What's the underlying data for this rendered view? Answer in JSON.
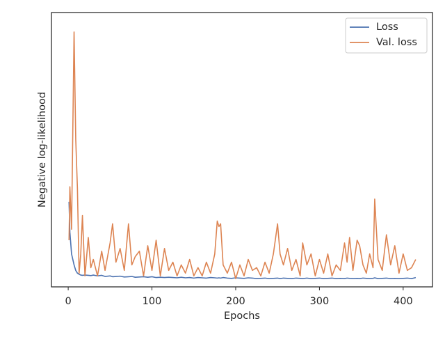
{
  "chart_data": {
    "type": "line",
    "x_label": "Epochs",
    "y_label": "Negative log-likelihood",
    "xlim": [
      -20,
      435
    ],
    "xticks": [
      0,
      100,
      200,
      300,
      400
    ],
    "ylim": [
      0,
      100
    ],
    "legend": "upper right",
    "x": [
      1,
      2,
      4,
      7,
      9,
      11,
      13,
      15,
      17,
      20,
      24,
      27,
      30,
      35,
      40,
      44,
      50,
      53,
      57,
      62,
      67,
      72,
      76,
      80,
      85,
      90,
      95,
      100,
      105,
      110,
      115,
      120,
      125,
      130,
      135,
      140,
      145,
      150,
      155,
      160,
      165,
      170,
      175,
      178,
      180,
      182,
      185,
      190,
      195,
      200,
      205,
      210,
      215,
      220,
      225,
      230,
      235,
      240,
      245,
      250,
      253,
      257,
      262,
      267,
      272,
      277,
      280,
      285,
      290,
      295,
      300,
      305,
      310,
      315,
      320,
      325,
      330,
      333,
      336,
      340,
      345,
      348,
      352,
      356,
      360,
      364,
      366,
      370,
      375,
      380,
      385,
      390,
      395,
      400,
      405,
      410,
      415
    ],
    "series": [
      {
        "name": "Loss",
        "color": "#4c72b0",
        "values": [
          31,
          20,
          12,
          8,
          6,
          5,
          4.6,
          4.3,
          4.2,
          4.3,
          4.2,
          4.1,
          4.3,
          4,
          4.2,
          3.8,
          4,
          3.7,
          3.8,
          3.9,
          3.6,
          3.7,
          3.8,
          3.5,
          3.6,
          3.7,
          3.5,
          3.7,
          3.4,
          3.5,
          3.4,
          3.5,
          3.4,
          3.3,
          3.5,
          3.3,
          3.4,
          3.2,
          3.4,
          3.3,
          3.2,
          3.4,
          3.3,
          3.2,
          3.3,
          3.2,
          3.4,
          3.2,
          3.1,
          3.3,
          3.2,
          3.1,
          3.3,
          3.2,
          3,
          3.1,
          3.2,
          3,
          3.1,
          3.2,
          3,
          3.2,
          3.1,
          3,
          3.2,
          3.1,
          3,
          3.2,
          3,
          3.1,
          3.2,
          3,
          3.1,
          3.2,
          3,
          3.1,
          3,
          3.2,
          3.1,
          3,
          3.1,
          3,
          3.2,
          3.1,
          3,
          3.1,
          3.3,
          3,
          3.1,
          3.2,
          3,
          3.1,
          3,
          3.1,
          3.2,
          3,
          3.4
        ]
      },
      {
        "name": "Val. loss",
        "color": "#dd8452",
        "values": [
          17,
          36.5,
          21,
          92.9,
          53.8,
          36,
          5,
          12,
          26,
          4,
          18,
          7,
          10,
          4,
          13,
          6,
          16,
          23,
          9,
          14,
          6,
          23,
          8,
          11,
          13,
          4,
          15,
          6,
          17,
          4,
          14,
          6,
          9,
          4,
          8,
          5,
          10,
          4,
          7,
          4,
          9,
          5,
          12,
          24,
          22,
          23,
          8,
          5,
          9,
          3,
          8,
          4,
          10,
          6,
          7,
          4,
          9,
          5,
          12,
          23,
          12,
          8,
          14,
          6,
          10,
          4,
          16,
          8,
          12,
          4,
          10,
          5,
          12,
          4,
          8,
          6,
          16,
          9,
          18,
          6,
          17,
          15,
          8,
          5,
          12,
          7,
          32,
          10,
          6,
          19,
          8,
          15,
          5,
          12,
          6,
          7,
          10
        ]
      }
    ]
  }
}
